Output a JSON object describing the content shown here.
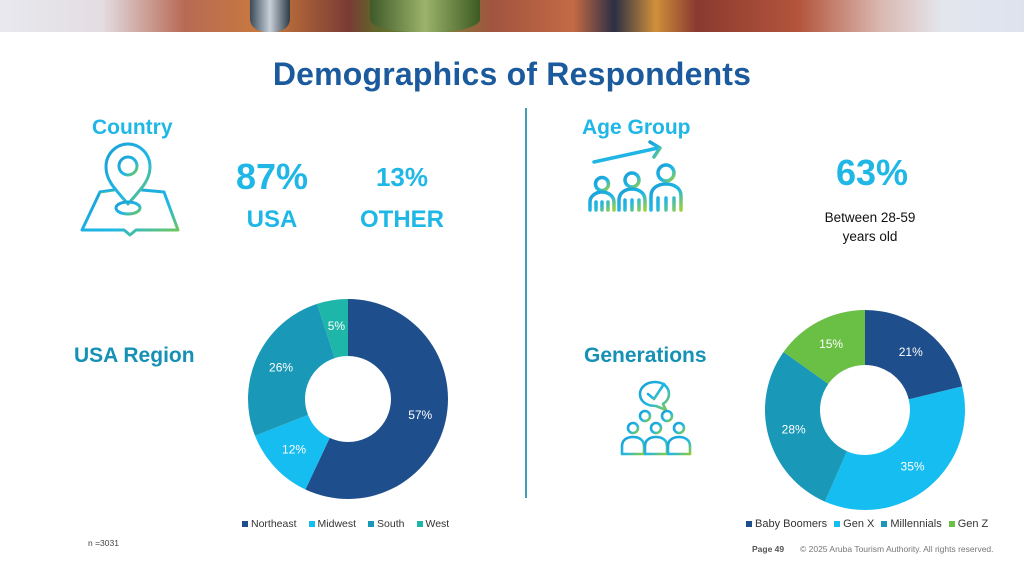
{
  "page": {
    "title": "Demographics of Respondents",
    "sample_size": "n =3031",
    "page_number": "Page 49",
    "copyright": "© 2025 Aruba Tourism Authority. All rights reserved."
  },
  "country": {
    "heading": "Country",
    "icon": "map-pin-icon",
    "usa_value": "87%",
    "usa_label": "USA",
    "other_value": "13%",
    "other_label": "OTHER"
  },
  "age_group": {
    "heading": "Age Group",
    "icon": "age-growth-people-icon",
    "value": "63%",
    "description_line1": "Between 28-59",
    "description_line2": "years old"
  },
  "usa_region": {
    "heading": "USA Region"
  },
  "generations": {
    "heading": "Generations",
    "icon": "group-checkmark-icon"
  },
  "colors": {
    "title": "#1b5a9c",
    "heading_cyan": "#1fb7e6",
    "heading_teal": "#1591b5",
    "divider": "#3a9fb7",
    "dark_blue": "#1f4e8c",
    "light_blue": "#16bdf0",
    "teal": "#1a98b8",
    "aqua": "#1eb6a8",
    "green": "#6abf45"
  },
  "chart_data": [
    {
      "type": "pie",
      "variant": "donut",
      "title": "USA Region",
      "categories": [
        "Northeast",
        "Midwest",
        "South",
        "West"
      ],
      "values": [
        57,
        12,
        26,
        5
      ],
      "labels": [
        "57%",
        "12%",
        "26%",
        "5%"
      ],
      "colors": [
        "#1f4e8c",
        "#16bdf0",
        "#1a98b8",
        "#1eb6a8"
      ],
      "legend_position": "bottom",
      "start": "top",
      "direction": "clockwise"
    },
    {
      "type": "pie",
      "variant": "donut",
      "title": "Generations",
      "categories": [
        "Baby Boomers",
        "Gen X",
        "Millennials",
        "Gen Z"
      ],
      "values": [
        21,
        35,
        28,
        15
      ],
      "labels": [
        "21%",
        "35%",
        "28%",
        "15%"
      ],
      "colors": [
        "#1f4e8c",
        "#16bdf0",
        "#1a98b8",
        "#6abf45"
      ],
      "legend_position": "bottom",
      "start": "top",
      "direction": "clockwise"
    }
  ]
}
